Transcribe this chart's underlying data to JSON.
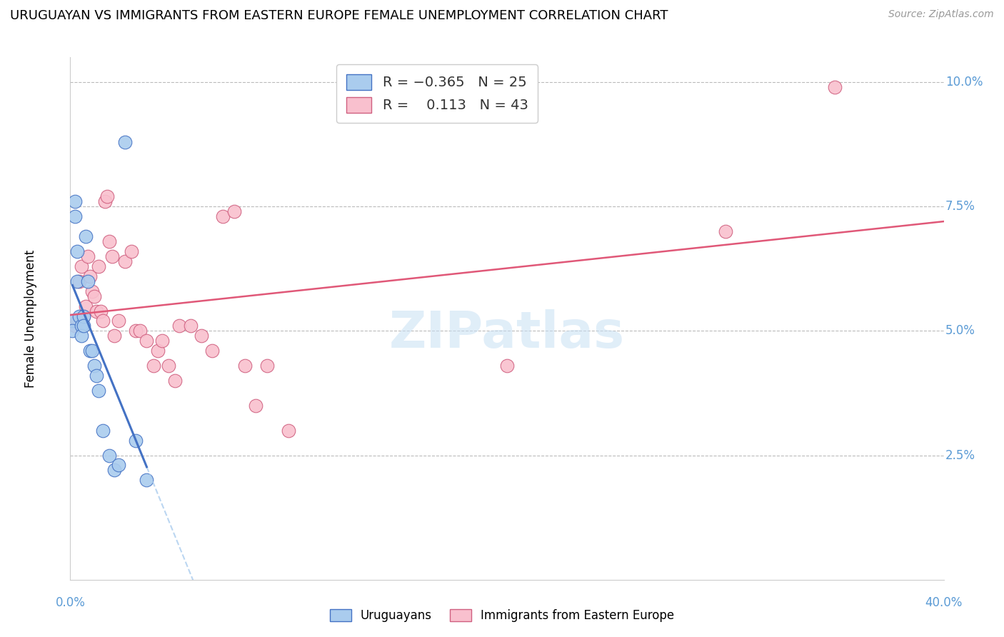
{
  "title": "URUGUAYAN VS IMMIGRANTS FROM EASTERN EUROPE FEMALE UNEMPLOYMENT CORRELATION CHART",
  "source": "Source: ZipAtlas.com",
  "ylabel": "Female Unemployment",
  "yticks": [
    0.0,
    0.025,
    0.05,
    0.075,
    0.1
  ],
  "ytick_labels": [
    "",
    "2.5%",
    "5.0%",
    "7.5%",
    "10.0%"
  ],
  "axis_color": "#5B9BD5",
  "grid_color": "#BBBBBB",
  "legend_label1": "Uruguayans",
  "legend_label2": "Immigrants from Eastern Europe",
  "uruguayan_x": [
    0.001,
    0.001,
    0.002,
    0.002,
    0.003,
    0.003,
    0.004,
    0.005,
    0.005,
    0.006,
    0.006,
    0.007,
    0.008,
    0.009,
    0.01,
    0.011,
    0.012,
    0.013,
    0.015,
    0.018,
    0.02,
    0.022,
    0.025,
    0.03,
    0.035
  ],
  "uruguayan_y": [
    0.052,
    0.05,
    0.076,
    0.073,
    0.066,
    0.06,
    0.053,
    0.051,
    0.049,
    0.053,
    0.051,
    0.069,
    0.06,
    0.046,
    0.046,
    0.043,
    0.041,
    0.038,
    0.03,
    0.025,
    0.022,
    0.023,
    0.088,
    0.028,
    0.02
  ],
  "eastern_x": [
    0.002,
    0.003,
    0.004,
    0.005,
    0.006,
    0.007,
    0.008,
    0.009,
    0.01,
    0.011,
    0.012,
    0.013,
    0.014,
    0.015,
    0.016,
    0.017,
    0.018,
    0.019,
    0.02,
    0.022,
    0.025,
    0.028,
    0.03,
    0.032,
    0.035,
    0.038,
    0.04,
    0.042,
    0.045,
    0.048,
    0.05,
    0.055,
    0.06,
    0.065,
    0.07,
    0.075,
    0.08,
    0.085,
    0.09,
    0.1,
    0.2,
    0.3,
    0.35
  ],
  "eastern_y": [
    0.051,
    0.052,
    0.06,
    0.063,
    0.053,
    0.055,
    0.065,
    0.061,
    0.058,
    0.057,
    0.054,
    0.063,
    0.054,
    0.052,
    0.076,
    0.077,
    0.068,
    0.065,
    0.049,
    0.052,
    0.064,
    0.066,
    0.05,
    0.05,
    0.048,
    0.043,
    0.046,
    0.048,
    0.043,
    0.04,
    0.051,
    0.051,
    0.049,
    0.046,
    0.073,
    0.074,
    0.043,
    0.035,
    0.043,
    0.03,
    0.043,
    0.07,
    0.099
  ],
  "blue_fill": "#AACCEE",
  "blue_edge": "#4472C4",
  "pink_fill": "#F9C0CE",
  "pink_edge": "#D06080",
  "blue_line": "#4472C4",
  "pink_line": "#E05878",
  "dashed_line": "#AACCEE",
  "watermark": "ZIPatlas",
  "scatter_size": 180,
  "xlim": [
    0.0,
    0.4
  ],
  "ylim": [
    0.0,
    0.105
  ]
}
